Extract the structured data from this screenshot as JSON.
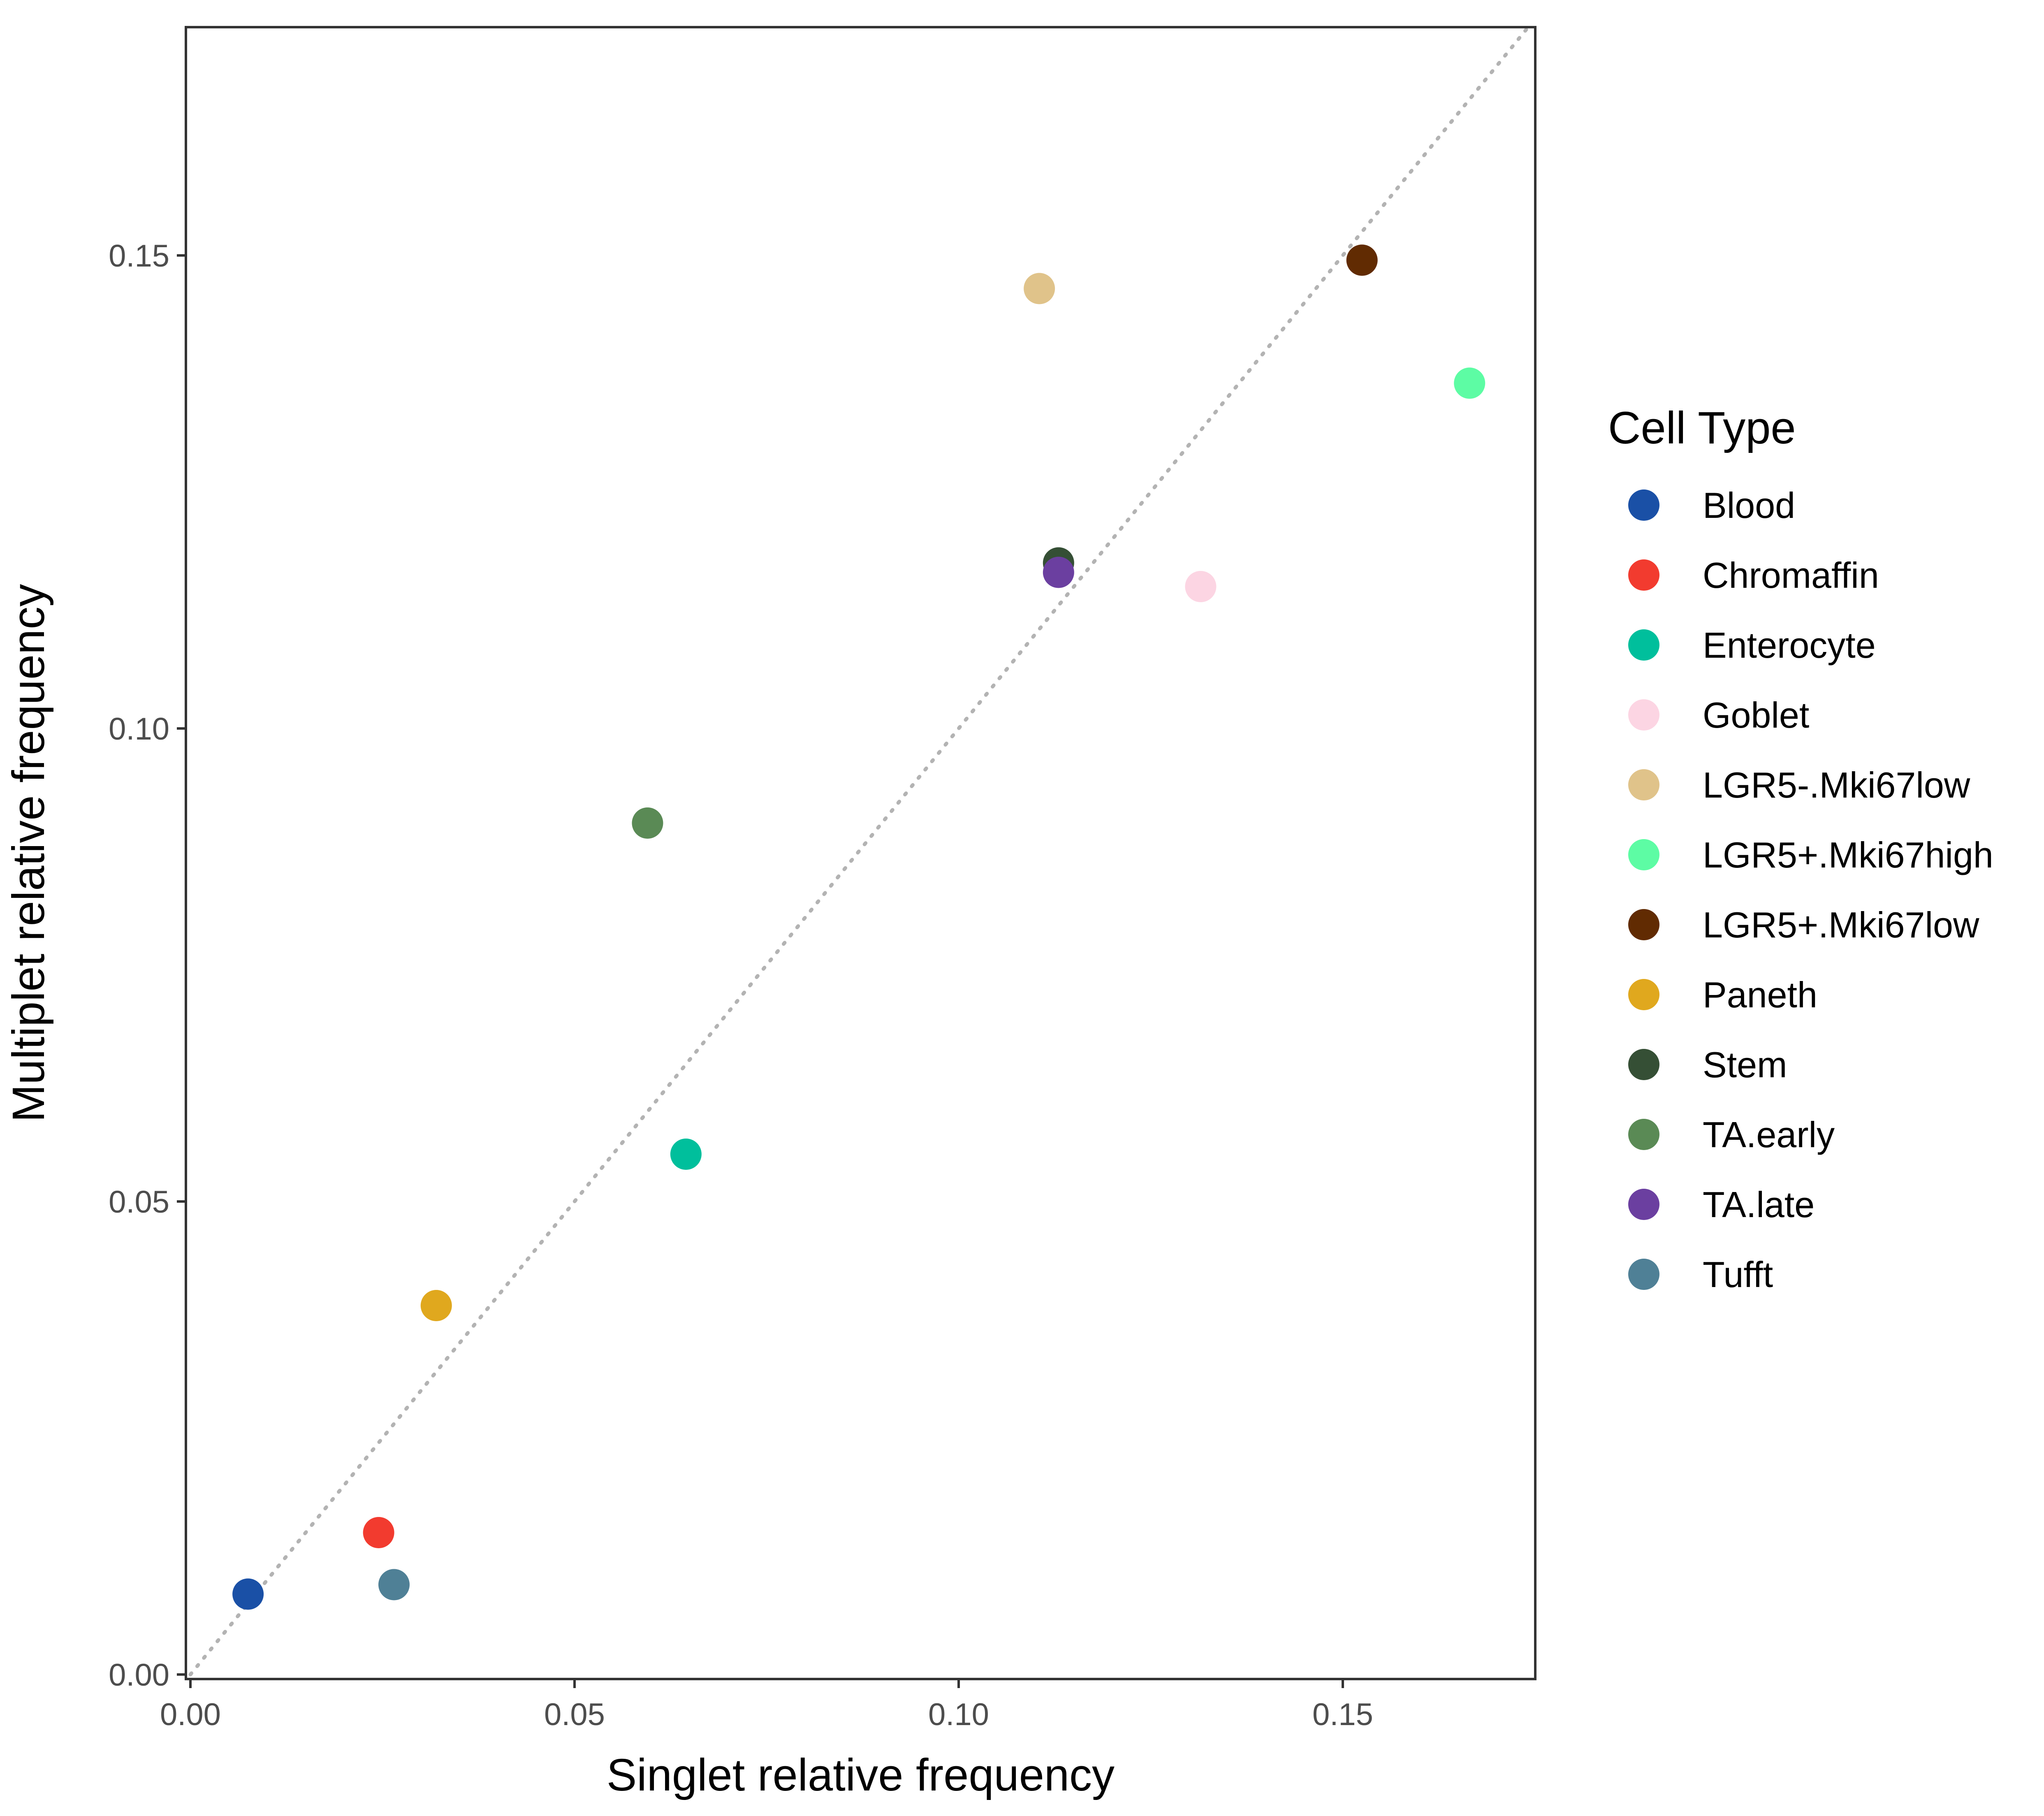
{
  "chart_data": {
    "type": "scatter",
    "xlabel": "Singlet relative frequency",
    "ylabel": "Multiplet relative frequency",
    "xlim": [
      0,
      0.175
    ],
    "ylim": [
      0,
      0.174
    ],
    "x_ticks": [
      "0.00",
      "0.05",
      "0.10",
      "0.15"
    ],
    "y_ticks": [
      "0.00",
      "0.05",
      "0.10",
      "0.15"
    ],
    "grid": false,
    "reference_line": {
      "style": "dotted",
      "slope": 1,
      "intercept": 0,
      "color": "#b3b3b3"
    },
    "legend": {
      "title": "Cell Type",
      "placement": "right"
    },
    "points": [
      {
        "name": "Blood",
        "x": 0.0075,
        "y": 0.0085,
        "color": "#1a50a6"
      },
      {
        "name": "Chromaffin",
        "x": 0.0245,
        "y": 0.015,
        "color": "#f23b2f"
      },
      {
        "name": "Enterocyte",
        "x": 0.0645,
        "y": 0.055,
        "color": "#00bf9c"
      },
      {
        "name": "Goblet",
        "x": 0.1315,
        "y": 0.115,
        "color": "#fcd5e3"
      },
      {
        "name": "LGR5-.Mki67low",
        "x": 0.1105,
        "y": 0.1465,
        "color": "#e0c38a"
      },
      {
        "name": "LGR5+.Mki67high",
        "x": 0.1665,
        "y": 0.1365,
        "color": "#5dfca4"
      },
      {
        "name": "LGR5+.Mki67low",
        "x": 0.1525,
        "y": 0.1495,
        "color": "#612b02"
      },
      {
        "name": "Paneth",
        "x": 0.032,
        "y": 0.039,
        "color": "#e0a81e"
      },
      {
        "name": "Stem",
        "x": 0.113,
        "y": 0.1175,
        "color": "#354f35"
      },
      {
        "name": "TA.early",
        "x": 0.0595,
        "y": 0.09,
        "color": "#5a8a55"
      },
      {
        "name": "TA.late",
        "x": 0.113,
        "y": 0.1165,
        "color": "#6b3fa0"
      },
      {
        "name": "Tufft",
        "x": 0.0265,
        "y": 0.0095,
        "color": "#4f8096"
      }
    ]
  }
}
